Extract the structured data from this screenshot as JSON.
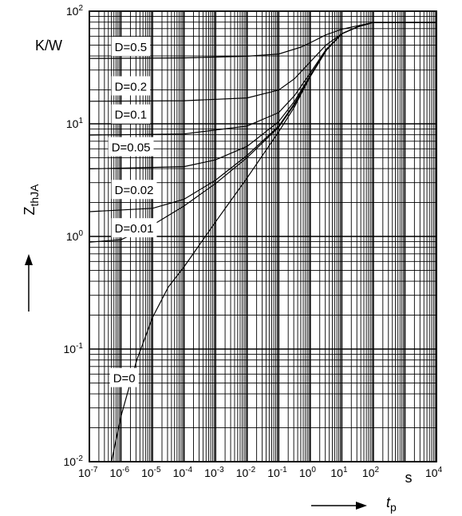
{
  "chart_data": {
    "type": "line",
    "x_scale": "log",
    "y_scale": "log",
    "xlim": [
      1e-07,
      10000
    ],
    "ylim": [
      0.01,
      100
    ],
    "grid": true,
    "ylabel": "Z",
    "ylabel_sub": "thJA",
    "yunit": "K/W",
    "xlabel": "t",
    "xlabel_sub": "p",
    "xunit": "s",
    "x_tick_labels": [
      {
        "base": "10",
        "exp": "-7"
      },
      {
        "base": "10",
        "exp": "-6"
      },
      {
        "base": "10",
        "exp": "-5"
      },
      {
        "base": "10",
        "exp": "-4"
      },
      {
        "base": "10",
        "exp": "-3"
      },
      {
        "base": "10",
        "exp": "-2"
      },
      {
        "base": "10",
        "exp": "-1"
      },
      {
        "base": "10",
        "exp": "0"
      },
      {
        "base": "10",
        "exp": "1"
      },
      {
        "base": "10",
        "exp": "2"
      },
      {
        "base": "10",
        "exp": "4"
      }
    ],
    "y_tick_labels": [
      {
        "base": "10",
        "exp": "2"
      },
      {
        "base": "10",
        "exp": "1"
      },
      {
        "base": "10",
        "exp": "0"
      },
      {
        "base": "10",
        "exp": "-1"
      },
      {
        "base": "10",
        "exp": "-2"
      }
    ],
    "series": [
      {
        "name": "D=0.5",
        "label_at": [
          -6.3,
          1.68
        ],
        "points": [
          [
            -7,
            1.58
          ],
          [
            -4,
            1.585
          ],
          [
            -2,
            1.6
          ],
          [
            -1,
            1.62
          ],
          [
            -0.3,
            1.68
          ],
          [
            0,
            1.72
          ],
          [
            0.5,
            1.79
          ],
          [
            1,
            1.84
          ],
          [
            1.5,
            1.87
          ],
          [
            2,
            1.9
          ],
          [
            4,
            1.9
          ]
        ]
      },
      {
        "name": "D=0.2",
        "label_at": [
          -6.3,
          1.33
        ],
        "points": [
          [
            -7,
            1.2
          ],
          [
            -4,
            1.205
          ],
          [
            -2,
            1.23
          ],
          [
            -1,
            1.3
          ],
          [
            -0.5,
            1.4
          ],
          [
            0,
            1.55
          ],
          [
            0.5,
            1.7
          ],
          [
            1,
            1.8
          ],
          [
            1.5,
            1.86
          ],
          [
            2,
            1.9
          ],
          [
            4,
            1.9
          ]
        ]
      },
      {
        "name": "D=0.1",
        "label_at": [
          -6.3,
          1.08
        ],
        "points": [
          [
            -7,
            0.9
          ],
          [
            -4,
            0.91
          ],
          [
            -2,
            0.98
          ],
          [
            -1,
            1.1
          ],
          [
            -0.5,
            1.25
          ],
          [
            0,
            1.45
          ],
          [
            0.5,
            1.66
          ],
          [
            1,
            1.8
          ],
          [
            1.5,
            1.86
          ],
          [
            2,
            1.9
          ],
          [
            4,
            1.9
          ]
        ]
      },
      {
        "name": "D=0.05",
        "label_at": [
          -6.4,
          0.79
        ],
        "points": [
          [
            -7,
            0.6
          ],
          [
            -4,
            0.62
          ],
          [
            -3,
            0.68
          ],
          [
            -2,
            0.8
          ],
          [
            -1,
            1.02
          ],
          [
            -0.5,
            1.2
          ],
          [
            0,
            1.43
          ],
          [
            0.5,
            1.65
          ],
          [
            1,
            1.8
          ],
          [
            1.5,
            1.86
          ],
          [
            2,
            1.9
          ],
          [
            4,
            1.9
          ]
        ]
      },
      {
        "name": "D=0.02",
        "label_at": [
          -6.3,
          0.41
        ],
        "points": [
          [
            -7,
            0.22
          ],
          [
            -5,
            0.25
          ],
          [
            -4,
            0.33
          ],
          [
            -3,
            0.5
          ],
          [
            -2,
            0.72
          ],
          [
            -1,
            0.98
          ],
          [
            -0.5,
            1.18
          ],
          [
            0,
            1.42
          ],
          [
            0.5,
            1.65
          ],
          [
            1,
            1.8
          ],
          [
            1.5,
            1.86
          ],
          [
            2,
            1.9
          ],
          [
            4,
            1.9
          ]
        ]
      },
      {
        "name": "D=0.01",
        "label_at": [
          -6.3,
          0.07
        ],
        "points": [
          [
            -7,
            -0.05
          ],
          [
            -6,
            -0.03
          ],
          [
            -5,
            0.1
          ],
          [
            -4,
            0.27
          ],
          [
            -3,
            0.47
          ],
          [
            -2,
            0.7
          ],
          [
            -1,
            0.97
          ],
          [
            -0.5,
            1.17
          ],
          [
            0,
            1.42
          ],
          [
            0.5,
            1.65
          ],
          [
            1,
            1.8
          ],
          [
            1.5,
            1.86
          ],
          [
            2,
            1.9
          ],
          [
            4,
            1.9
          ]
        ]
      },
      {
        "name": "D=0",
        "label_at": [
          -6.35,
          -1.26
        ],
        "points": [
          [
            -6.3,
            -2.0
          ],
          [
            -6,
            -1.6
          ],
          [
            -5.5,
            -1.1
          ],
          [
            -5,
            -0.72
          ],
          [
            -4.5,
            -0.45
          ],
          [
            -4,
            -0.27
          ],
          [
            -3.5,
            -0.07
          ],
          [
            -3,
            0.13
          ],
          [
            -2,
            0.52
          ],
          [
            -1,
            0.93
          ],
          [
            -0.5,
            1.15
          ],
          [
            0,
            1.42
          ],
          [
            0.5,
            1.65
          ],
          [
            1,
            1.8
          ],
          [
            1.5,
            1.86
          ],
          [
            2,
            1.9
          ],
          [
            4,
            1.9
          ]
        ]
      }
    ]
  }
}
